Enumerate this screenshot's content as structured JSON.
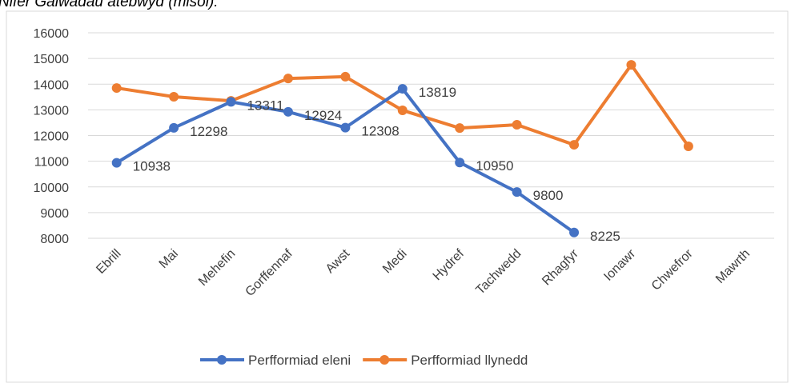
{
  "chart_data": {
    "type": "line",
    "title": "Nifer Galwadau atebwyd (misol):",
    "categories": [
      "Ebrill",
      "Mai",
      "Mehefin",
      "Gorffennaf",
      "Awst",
      "Medi",
      "Hydref",
      "Tachwedd",
      "Rhagfyr",
      "Ionawr",
      "Chwefror",
      "Mawrth"
    ],
    "series": [
      {
        "name": "Perfformiad eleni",
        "color": "#4472c4",
        "show_labels": true,
        "values": [
          10938,
          12298,
          13311,
          12924,
          12308,
          13819,
          10950,
          9800,
          8225,
          null,
          null,
          null
        ]
      },
      {
        "name": "Perfformiad llynedd",
        "color": "#ed7d31",
        "show_labels": false,
        "values": [
          13850,
          13510,
          13350,
          14220,
          14290,
          12980,
          12290,
          12420,
          11640,
          14750,
          11580,
          null
        ]
      }
    ],
    "ylim": [
      8000,
      16000
    ],
    "yticks": [
      8000,
      9000,
      10000,
      11000,
      12000,
      13000,
      14000,
      15000,
      16000
    ],
    "grid": true,
    "legend": "bottom"
  }
}
